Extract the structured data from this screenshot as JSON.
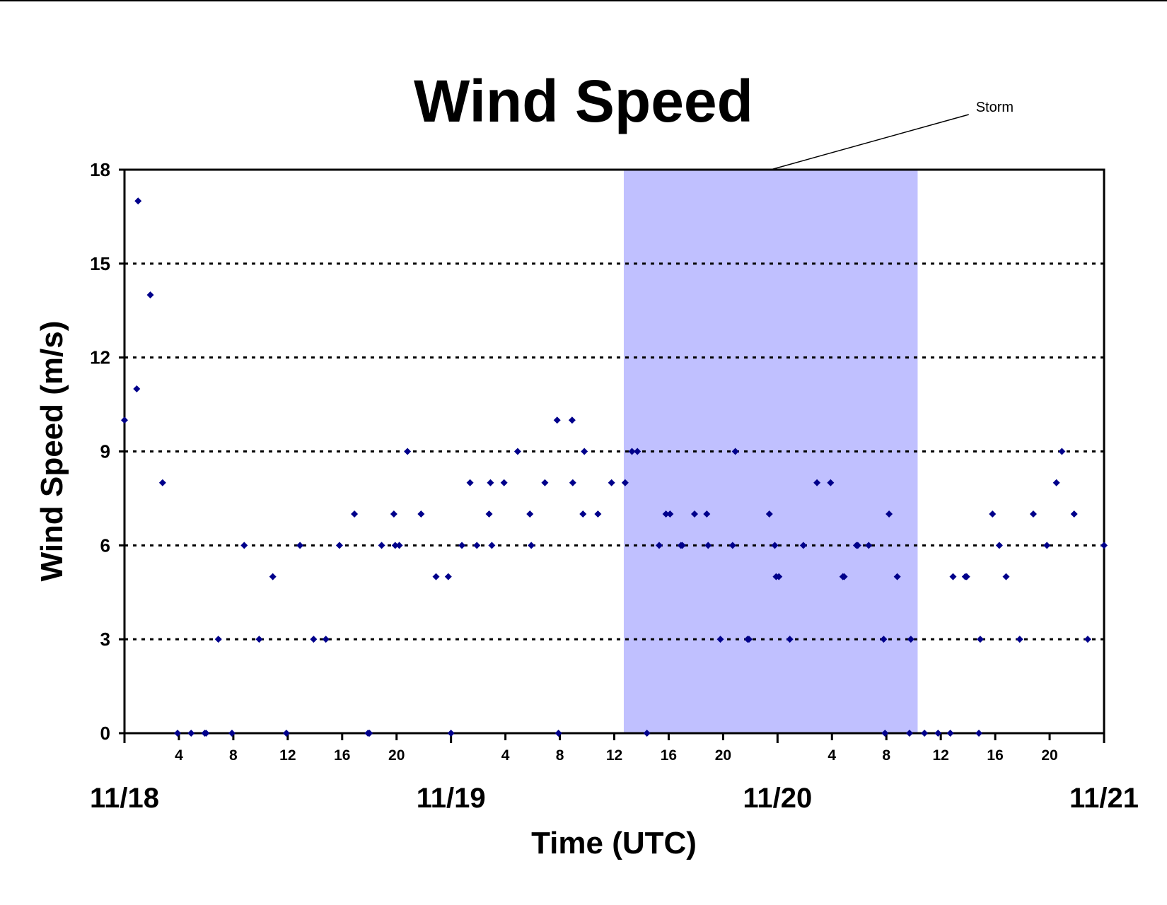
{
  "chart_data": {
    "type": "scatter",
    "title": "Wind Speed",
    "xlabel": "Time (UTC)",
    "ylabel": "Wind Speed (m/s)",
    "x_unit": "hours since 11/18 00 UTC",
    "xlim": [
      0,
      72
    ],
    "ylim": [
      0,
      18
    ],
    "y_ticks": [
      0,
      3,
      6,
      9,
      12,
      15,
      18
    ],
    "grid": "horizontal dotted",
    "legend": "none",
    "colors": {
      "points": "#00008B",
      "storm": "#C0C0FF",
      "grid": "#000000"
    },
    "day_labels": [
      {
        "x": 0,
        "label": "11/18"
      },
      {
        "x": 24,
        "label": "11/19"
      },
      {
        "x": 48,
        "label": "11/20"
      },
      {
        "x": 72,
        "label": "11/21"
      }
    ],
    "hour_ticks": [
      {
        "x": 4,
        "label": "4"
      },
      {
        "x": 8,
        "label": "8"
      },
      {
        "x": 12,
        "label": "12"
      },
      {
        "x": 16,
        "label": "16"
      },
      {
        "x": 20,
        "label": "20"
      },
      {
        "x": 28,
        "label": "4"
      },
      {
        "x": 32,
        "label": "8"
      },
      {
        "x": 36,
        "label": "12"
      },
      {
        "x": 40,
        "label": "16"
      },
      {
        "x": 44,
        "label": "20"
      },
      {
        "x": 52,
        "label": "4"
      },
      {
        "x": 56,
        "label": "8"
      },
      {
        "x": 60,
        "label": "12"
      },
      {
        "x": 64,
        "label": "16"
      },
      {
        "x": 68,
        "label": "20"
      }
    ],
    "annotation": {
      "label": "Storm",
      "x_start": 36.7,
      "x_end": 58.3
    },
    "series": [
      {
        "points": [
          [
            0,
            10
          ],
          [
            0.9,
            11
          ],
          [
            1,
            17
          ],
          [
            1.9,
            14
          ],
          [
            2.8,
            8
          ],
          [
            3.9,
            0
          ],
          [
            4.9,
            0
          ],
          [
            5.9,
            0
          ],
          [
            6,
            0
          ],
          [
            6.9,
            3
          ],
          [
            7.9,
            0
          ],
          [
            8.8,
            6
          ],
          [
            9.9,
            3
          ],
          [
            10.9,
            5
          ],
          [
            11.9,
            0
          ],
          [
            12.9,
            6
          ],
          [
            13.9,
            3
          ],
          [
            14.8,
            3
          ],
          [
            15.8,
            6
          ],
          [
            16.9,
            7
          ],
          [
            17.9,
            0
          ],
          [
            18,
            0
          ],
          [
            18.9,
            6
          ],
          [
            19.8,
            7
          ],
          [
            19.9,
            6
          ],
          [
            20.2,
            6
          ],
          [
            20.8,
            9
          ],
          [
            21.8,
            7
          ],
          [
            22.9,
            5
          ],
          [
            23.8,
            5
          ],
          [
            24,
            0
          ],
          [
            24.8,
            6
          ],
          [
            25.4,
            8
          ],
          [
            25.9,
            6
          ],
          [
            26.8,
            7
          ],
          [
            26.9,
            8
          ],
          [
            27,
            6
          ],
          [
            27.9,
            8
          ],
          [
            28.9,
            9
          ],
          [
            29.8,
            7
          ],
          [
            29.9,
            6
          ],
          [
            30.9,
            8
          ],
          [
            31.8,
            10
          ],
          [
            31.9,
            0
          ],
          [
            32.9,
            10
          ],
          [
            32.95,
            8
          ],
          [
            33.8,
            9
          ],
          [
            33.7,
            7
          ],
          [
            34.8,
            7
          ],
          [
            35.8,
            8
          ],
          [
            36.8,
            8
          ],
          [
            37.3,
            9
          ],
          [
            37.7,
            9
          ],
          [
            38.4,
            0
          ],
          [
            39.3,
            6
          ],
          [
            39.8,
            7
          ],
          [
            40.1,
            7
          ],
          [
            40.9,
            6
          ],
          [
            41,
            6
          ],
          [
            41.9,
            7
          ],
          [
            42.8,
            7
          ],
          [
            42.9,
            6
          ],
          [
            43.8,
            3
          ],
          [
            44.7,
            6
          ],
          [
            45.8,
            3
          ],
          [
            44.9,
            9
          ],
          [
            45.9,
            3
          ],
          [
            47.4,
            7
          ],
          [
            47.8,
            6
          ],
          [
            47.9,
            5
          ],
          [
            48.1,
            5
          ],
          [
            48.9,
            3
          ],
          [
            49.9,
            6
          ],
          [
            50.9,
            8
          ],
          [
            51.9,
            8
          ],
          [
            52.8,
            5
          ],
          [
            52.9,
            5
          ],
          [
            53.8,
            6
          ],
          [
            53.9,
            6
          ],
          [
            54.7,
            6
          ],
          [
            55.8,
            3
          ],
          [
            55.9,
            0
          ],
          [
            56.2,
            7
          ],
          [
            56.8,
            5
          ],
          [
            57.7,
            0
          ],
          [
            57.8,
            3
          ],
          [
            58.8,
            0
          ],
          [
            59.8,
            0
          ],
          [
            60.9,
            5
          ],
          [
            61.8,
            5
          ],
          [
            61.9,
            5
          ],
          [
            60.7,
            0
          ],
          [
            62.8,
            0
          ],
          [
            62.9,
            3
          ],
          [
            63.8,
            7
          ],
          [
            64.3,
            6
          ],
          [
            64.8,
            5
          ],
          [
            65.8,
            3
          ],
          [
            66.8,
            7
          ],
          [
            67.8,
            6
          ],
          [
            68.5,
            8
          ],
          [
            68.9,
            9
          ],
          [
            69.8,
            7
          ],
          [
            70.8,
            3
          ],
          [
            72,
            6
          ]
        ]
      }
    ]
  }
}
